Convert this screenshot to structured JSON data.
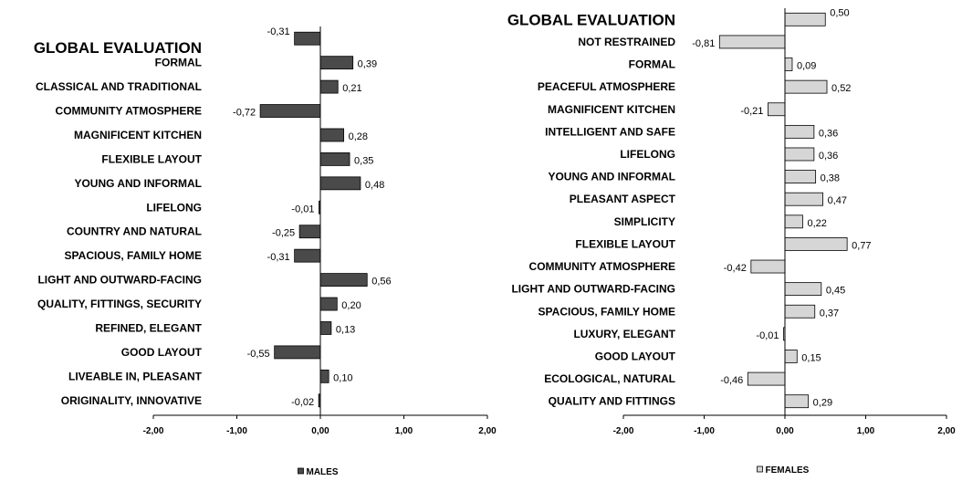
{
  "chart_data": [
    {
      "type": "bar",
      "orientation": "horizontal",
      "legend": "MALES",
      "legend_position": "bottom",
      "grid": false,
      "xlim": [
        -2,
        2
      ],
      "xticks": [
        "-2,00",
        "-1,00",
        "0,00",
        "1,00",
        "2,00"
      ],
      "bar_color": "#4a4a4a",
      "categories": [
        "GLOBAL EVALUATION",
        "FORMAL",
        "CLASSICAL AND TRADITIONAL",
        "COMMUNITY ATMOSPHERE",
        "MAGNIFICENT KITCHEN",
        "FLEXIBLE LAYOUT",
        "YOUNG AND INFORMAL",
        "LIFELONG",
        "COUNTRY AND NATURAL",
        "SPACIOUS, FAMILY HOME",
        "LIGHT AND OUTWARD-FACING",
        "QUALITY, FITTINGS, SECURITY",
        "REFINED, ELEGANT",
        "GOOD LAYOUT",
        "LIVEABLE IN, PLEASANT",
        "ORIGINALITY, INNOVATIVE"
      ],
      "values": [
        -0.31,
        0.39,
        0.21,
        -0.72,
        0.28,
        0.35,
        0.48,
        -0.01,
        -0.25,
        -0.31,
        0.56,
        0.2,
        0.13,
        -0.55,
        0.1,
        -0.02
      ],
      "labels": [
        "-0,31",
        "0,39",
        "0,21",
        "-0,72",
        "0,28",
        "0,35",
        "0,48",
        "-0,01",
        "-0,25",
        "-0,31",
        "0,56",
        "0,20",
        "0,13",
        "-0,55",
        "0,10",
        "-0,02"
      ]
    },
    {
      "type": "bar",
      "orientation": "horizontal",
      "legend": "FEMALES",
      "legend_position": "bottom",
      "grid": false,
      "xlim": [
        -2,
        2
      ],
      "xticks": [
        "-2,00",
        "-1,00",
        "0,00",
        "1,00",
        "2,00"
      ],
      "bar_color": "#d6d6d6",
      "categories": [
        "GLOBAL EVALUATION",
        "NOT RESTRAINED",
        "FORMAL",
        "PEACEFUL ATMOSPHERE",
        "MAGNIFICENT KITCHEN",
        "INTELLIGENT AND SAFE",
        "LIFELONG",
        "YOUNG AND INFORMAL",
        "PLEASANT ASPECT",
        "SIMPLICITY",
        "FLEXIBLE LAYOUT",
        "COMMUNITY ATMOSPHERE",
        "LIGHT AND OUTWARD-FACING",
        "SPACIOUS, FAMILY HOME",
        "LUXURY, ELEGANT",
        "GOOD LAYOUT",
        "ECOLOGICAL, NATURAL",
        "QUALITY AND FITTINGS"
      ],
      "values": [
        0.5,
        -0.81,
        0.09,
        0.52,
        -0.21,
        0.36,
        0.36,
        0.38,
        0.47,
        0.22,
        0.77,
        -0.42,
        0.45,
        0.37,
        -0.01,
        0.15,
        -0.46,
        0.29
      ],
      "labels": [
        "0,50",
        "-0,81",
        "0,09",
        "0,52",
        "-0,21",
        "0,36",
        "0,36",
        "0,38",
        "0,47",
        "0,22",
        "0,77",
        "-0,42",
        "0,45",
        "0,37",
        "-0,01",
        "0,15",
        "-0,46",
        "0,29"
      ]
    }
  ]
}
